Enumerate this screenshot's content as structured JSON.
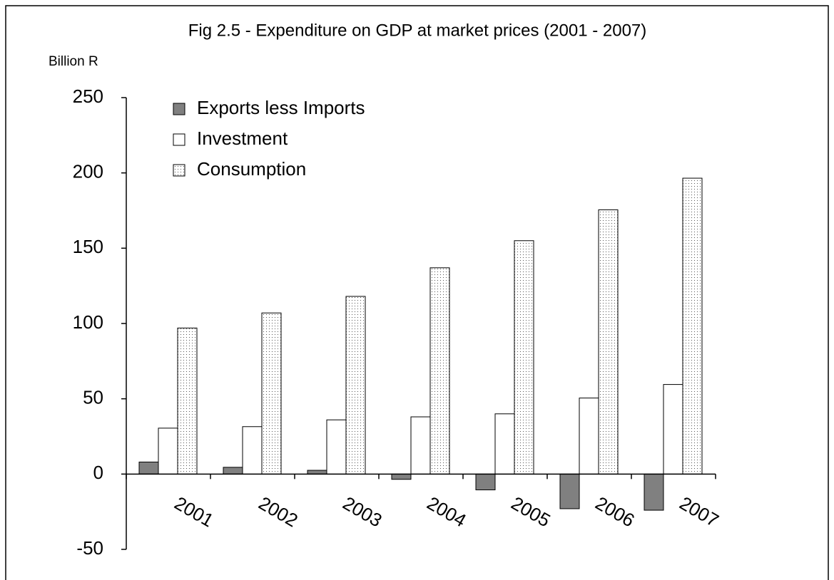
{
  "chart_data": {
    "type": "bar",
    "title": "Fig 2.5 - Expenditure on GDP at market prices (2001 - 2007)",
    "y_label": "Billion R",
    "categories": [
      "2001",
      "2002",
      "2003",
      "2004",
      "2005",
      "2006",
      "2007"
    ],
    "series": [
      {
        "name": "Exports less Imports",
        "color": "#808080",
        "values": [
          8,
          4.5,
          2.5,
          -3.5,
          -10.5,
          -23,
          -24
        ]
      },
      {
        "name": "Investment",
        "color": "#ffffff",
        "values": [
          30.5,
          31.5,
          36,
          38,
          40,
          50.5,
          59.5
        ]
      },
      {
        "name": "Consumption",
        "color": "#ffffff",
        "pattern": "dots",
        "values": [
          97,
          107,
          118,
          137,
          155,
          175.5,
          196.5
        ]
      }
    ],
    "ylim": [
      -50,
      250
    ],
    "yticks": [
      -50,
      0,
      50,
      100,
      150,
      200,
      250
    ],
    "legend": "top-left",
    "grid": false
  }
}
